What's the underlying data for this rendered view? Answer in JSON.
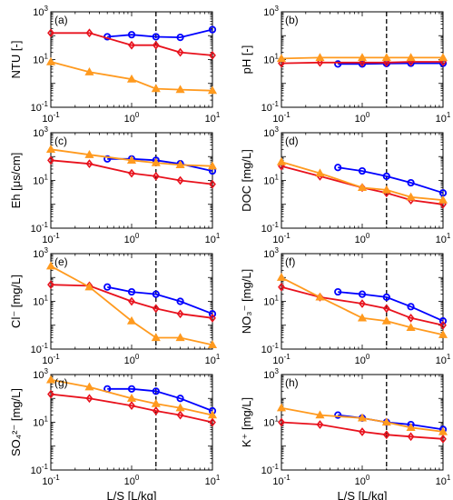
{
  "figure": {
    "xlabel": "L/S [L/kg]",
    "x_ticks": [
      {
        "value": 0.1,
        "base": "10",
        "exp": "-1"
      },
      {
        "value": 1,
        "base": "10",
        "exp": "0"
      },
      {
        "value": 10,
        "base": "10",
        "exp": "1"
      }
    ],
    "y_ticks": [
      {
        "value": 0.1,
        "base": "10",
        "exp": "-1"
      },
      {
        "value": 10,
        "base": "10",
        "exp": "1"
      },
      {
        "value": 1000,
        "base": "10",
        "exp": "3"
      }
    ],
    "series_colors": {
      "blue": "#0000ff",
      "red": "#e8121d",
      "orange": "#ff9a1f"
    },
    "dashed_line_x": 2
  },
  "chart_data": [
    {
      "type": "line",
      "panel": "(a)",
      "ylabel": "NTU [-]",
      "xscale": "log",
      "yscale": "log",
      "xlim": [
        0.1,
        10
      ],
      "ylim": [
        0.1,
        1000
      ],
      "series": [
        {
          "color": "blue",
          "marker": "circle",
          "x": [
            0.5,
            1,
            2,
            4,
            10
          ],
          "y": [
            90,
            110,
            90,
            85,
            180
          ]
        },
        {
          "color": "red",
          "marker": "diamond",
          "x": [
            0.1,
            0.3,
            1,
            2,
            4,
            10
          ],
          "y": [
            130,
            130,
            40,
            40,
            20,
            15
          ]
        },
        {
          "color": "orange",
          "marker": "triangle",
          "x": [
            0.1,
            0.3,
            1,
            2,
            4,
            10
          ],
          "y": [
            8,
            3,
            1.5,
            0.6,
            0.55,
            0.5
          ]
        }
      ]
    },
    {
      "type": "line",
      "panel": "(b)",
      "ylabel": "pH [-]",
      "xscale": "log",
      "yscale": "log",
      "xlim": [
        0.1,
        10
      ],
      "ylim": [
        0.1,
        1000
      ],
      "series": [
        {
          "color": "blue",
          "marker": "circle",
          "x": [
            0.5,
            1,
            2,
            4,
            10
          ],
          "y": [
            6.5,
            6.5,
            6.8,
            7,
            7
          ]
        },
        {
          "color": "red",
          "marker": "diamond",
          "x": [
            0.1,
            0.3,
            1,
            2,
            4,
            10
          ],
          "y": [
            7,
            7.5,
            7.5,
            7.5,
            8,
            8
          ]
        },
        {
          "color": "orange",
          "marker": "triangle",
          "x": [
            0.1,
            0.3,
            1,
            2,
            4,
            10
          ],
          "y": [
            11,
            12,
            12,
            12,
            12,
            12
          ]
        }
      ]
    },
    {
      "type": "line",
      "panel": "(c)",
      "ylabel": "Eh [μs/cm]",
      "xscale": "log",
      "yscale": "log",
      "xlim": [
        0.1,
        10
      ],
      "ylim": [
        0.1,
        1000
      ],
      "series": [
        {
          "color": "blue",
          "marker": "circle",
          "x": [
            0.5,
            1,
            2,
            4,
            10
          ],
          "y": [
            80,
            80,
            70,
            50,
            25
          ]
        },
        {
          "color": "red",
          "marker": "diamond",
          "x": [
            0.1,
            0.3,
            1,
            2,
            4,
            10
          ],
          "y": [
            70,
            50,
            20,
            15,
            10,
            7
          ]
        },
        {
          "color": "orange",
          "marker": "triangle",
          "x": [
            0.1,
            0.3,
            1,
            2,
            4,
            10
          ],
          "y": [
            200,
            120,
            70,
            55,
            45,
            40
          ]
        }
      ]
    },
    {
      "type": "line",
      "panel": "(d)",
      "ylabel": "DOC [mg/L]",
      "xscale": "log",
      "yscale": "log",
      "xlim": [
        0.1,
        10
      ],
      "ylim": [
        0.1,
        1000
      ],
      "series": [
        {
          "color": "blue",
          "marker": "circle",
          "x": [
            0.5,
            1,
            2,
            4,
            10
          ],
          "y": [
            35,
            25,
            15,
            8,
            3
          ]
        },
        {
          "color": "red",
          "marker": "diamond",
          "x": [
            0.1,
            0.3,
            1,
            2,
            4,
            10
          ],
          "y": [
            40,
            15,
            5,
            3,
            1.5,
            1
          ]
        },
        {
          "color": "orange",
          "marker": "triangle",
          "x": [
            0.1,
            0.3,
            1,
            2,
            4,
            10
          ],
          "y": [
            60,
            20,
            5,
            4,
            2,
            1.5
          ]
        }
      ]
    },
    {
      "type": "line",
      "panel": "(e)",
      "ylabel": "Cl⁻ [mg/L]",
      "xscale": "log",
      "yscale": "log",
      "xlim": [
        0.1,
        10
      ],
      "ylim": [
        0.1,
        1000
      ],
      "series": [
        {
          "color": "blue",
          "marker": "circle",
          "x": [
            0.5,
            1,
            2,
            4,
            10
          ],
          "y": [
            40,
            25,
            20,
            10,
            3
          ]
        },
        {
          "color": "red",
          "marker": "diamond",
          "x": [
            0.1,
            0.3,
            1,
            2,
            4,
            10
          ],
          "y": [
            50,
            45,
            10,
            5,
            3,
            2
          ]
        },
        {
          "color": "orange",
          "marker": "triangle",
          "x": [
            0.1,
            0.3,
            1,
            2,
            4,
            10
          ],
          "y": [
            300,
            40,
            1.5,
            0.3,
            0.3,
            0.15
          ]
        }
      ]
    },
    {
      "type": "line",
      "panel": "(f)",
      "ylabel": "NO₃⁻ [mg/L]",
      "xscale": "log",
      "yscale": "log",
      "xlim": [
        0.1,
        10
      ],
      "ylim": [
        0.1,
        1000
      ],
      "series": [
        {
          "color": "blue",
          "marker": "circle",
          "x": [
            0.5,
            1,
            2,
            4,
            10
          ],
          "y": [
            25,
            20,
            15,
            6,
            1.5
          ]
        },
        {
          "color": "red",
          "marker": "diamond",
          "x": [
            0.1,
            0.3,
            1,
            2,
            4,
            10
          ],
          "y": [
            40,
            15,
            8,
            5,
            2,
            1
          ]
        },
        {
          "color": "orange",
          "marker": "triangle",
          "x": [
            0.1,
            0.3,
            1,
            2,
            4,
            10
          ],
          "y": [
            100,
            15,
            2,
            1.5,
            0.8,
            0.4
          ]
        }
      ]
    },
    {
      "type": "line",
      "panel": "(g)",
      "ylabel": "SO₄²⁻ [mg/L]",
      "xscale": "log",
      "yscale": "log",
      "xlim": [
        0.1,
        10
      ],
      "ylim": [
        0.1,
        1000
      ],
      "series": [
        {
          "color": "blue",
          "marker": "circle",
          "x": [
            0.5,
            1,
            2,
            4,
            10
          ],
          "y": [
            250,
            250,
            200,
            100,
            30
          ]
        },
        {
          "color": "red",
          "marker": "diamond",
          "x": [
            0.1,
            0.3,
            1,
            2,
            4,
            10
          ],
          "y": [
            150,
            100,
            50,
            30,
            20,
            10
          ]
        },
        {
          "color": "orange",
          "marker": "triangle",
          "x": [
            0.1,
            0.3,
            1,
            2,
            4,
            10
          ],
          "y": [
            600,
            300,
            100,
            60,
            40,
            20
          ]
        }
      ]
    },
    {
      "type": "line",
      "panel": "(h)",
      "ylabel": "K⁺ [mg/L]",
      "xscale": "log",
      "yscale": "log",
      "xlim": [
        0.1,
        10
      ],
      "ylim": [
        0.1,
        1000
      ],
      "series": [
        {
          "color": "blue",
          "marker": "circle",
          "x": [
            0.5,
            1,
            2,
            4,
            10
          ],
          "y": [
            20,
            15,
            10,
            8,
            5
          ]
        },
        {
          "color": "red",
          "marker": "diamond",
          "x": [
            0.1,
            0.3,
            1,
            2,
            4,
            10
          ],
          "y": [
            10,
            8,
            4,
            3,
            2.5,
            2
          ]
        },
        {
          "color": "orange",
          "marker": "triangle",
          "x": [
            0.1,
            0.3,
            1,
            2,
            4,
            10
          ],
          "y": [
            40,
            20,
            15,
            10,
            6,
            4
          ]
        }
      ]
    }
  ]
}
